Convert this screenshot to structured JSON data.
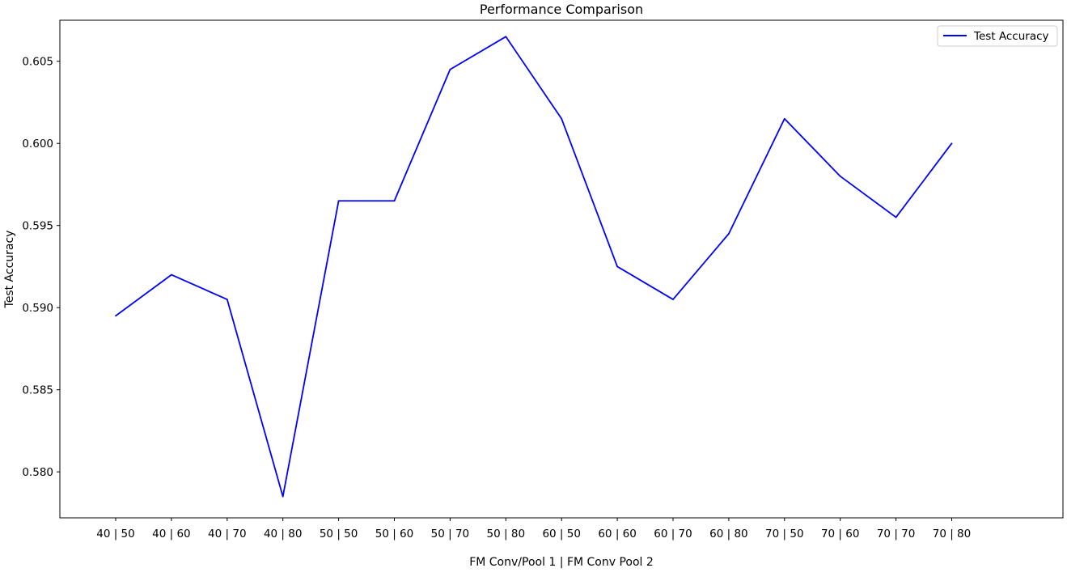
{
  "chart_data": {
    "type": "line",
    "title": "Performance Comparison",
    "xlabel": "FM Conv/Pool 1 | FM Conv Pool 2",
    "ylabel": "Test Accuracy",
    "categories": [
      "40 | 50",
      "40 | 60",
      "40 | 70",
      "40 | 80",
      "50 | 50",
      "50 | 60",
      "50 | 70",
      "50 | 80",
      "60 | 50",
      "60 | 60",
      "60 | 70",
      "60 | 80",
      "70 | 50",
      "70 | 60",
      "70 | 70",
      "70 | 80"
    ],
    "series": [
      {
        "name": "Test Accuracy",
        "color": "#0000ff",
        "values": [
          0.5895,
          0.592,
          0.5905,
          0.5785,
          0.5965,
          0.5965,
          0.6045,
          0.6065,
          0.6015,
          0.5925,
          0.5905,
          0.5945,
          0.6015,
          0.598,
          0.5955,
          0.6
        ]
      }
    ],
    "yticks": [
      "0.580",
      "0.585",
      "0.590",
      "0.595",
      "0.600",
      "0.605"
    ],
    "ylim": [
      0.5772,
      0.6075
    ],
    "grid": false,
    "legend": "top-right"
  }
}
